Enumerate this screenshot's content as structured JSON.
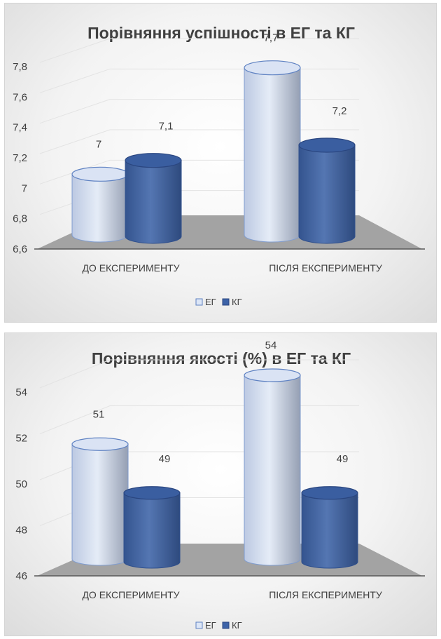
{
  "chart_data": [
    {
      "type": "bar",
      "style": "3d-cylinder",
      "title": "Порівняння успішності в ЕГ та КГ",
      "xlabel": "",
      "ylabel": "",
      "categories": [
        "ДО ЕКСПЕРИМЕНТУ",
        "ПІСЛЯ ЕКСПЕРИМЕНТУ"
      ],
      "series": [
        {
          "name": "ЕГ",
          "values": [
            7,
            7.7
          ],
          "labels": [
            "7",
            "7,7"
          ],
          "color": "#c6d4ee"
        },
        {
          "name": "КГ",
          "values": [
            7.1,
            7.2
          ],
          "labels": [
            "7,1",
            "7,2"
          ],
          "color": "#3d63a8"
        }
      ],
      "ylim": [
        6.6,
        7.8
      ],
      "yticks": [
        6.6,
        6.8,
        7,
        7.2,
        7.4,
        7.6,
        7.8
      ],
      "ytick_labels": [
        "6,6",
        "6,8",
        "7",
        "7,2",
        "7,4",
        "7,6",
        "7,8"
      ],
      "grid": true,
      "legend_position": "bottom"
    },
    {
      "type": "bar",
      "style": "3d-cylinder",
      "title": "Порівняння якості (%) в ЕГ та КГ",
      "xlabel": "",
      "ylabel": "",
      "categories": [
        "ДО ЕКСПЕРИМЕНТУ",
        "ПІСЛЯ ЕКСПЕРИМЕНТУ"
      ],
      "series": [
        {
          "name": "ЕГ",
          "values": [
            51,
            54
          ],
          "labels": [
            "51",
            "54"
          ],
          "color": "#c6d4ee"
        },
        {
          "name": "КГ",
          "values": [
            49,
            49
          ],
          "labels": [
            "49",
            "49"
          ],
          "color": "#3d63a8"
        }
      ],
      "ylim": [
        46,
        54
      ],
      "yticks": [
        46,
        48,
        50,
        52,
        54
      ],
      "ytick_labels": [
        "46",
        "48",
        "50",
        "52",
        "54"
      ],
      "grid": true,
      "legend_position": "bottom"
    }
  ]
}
